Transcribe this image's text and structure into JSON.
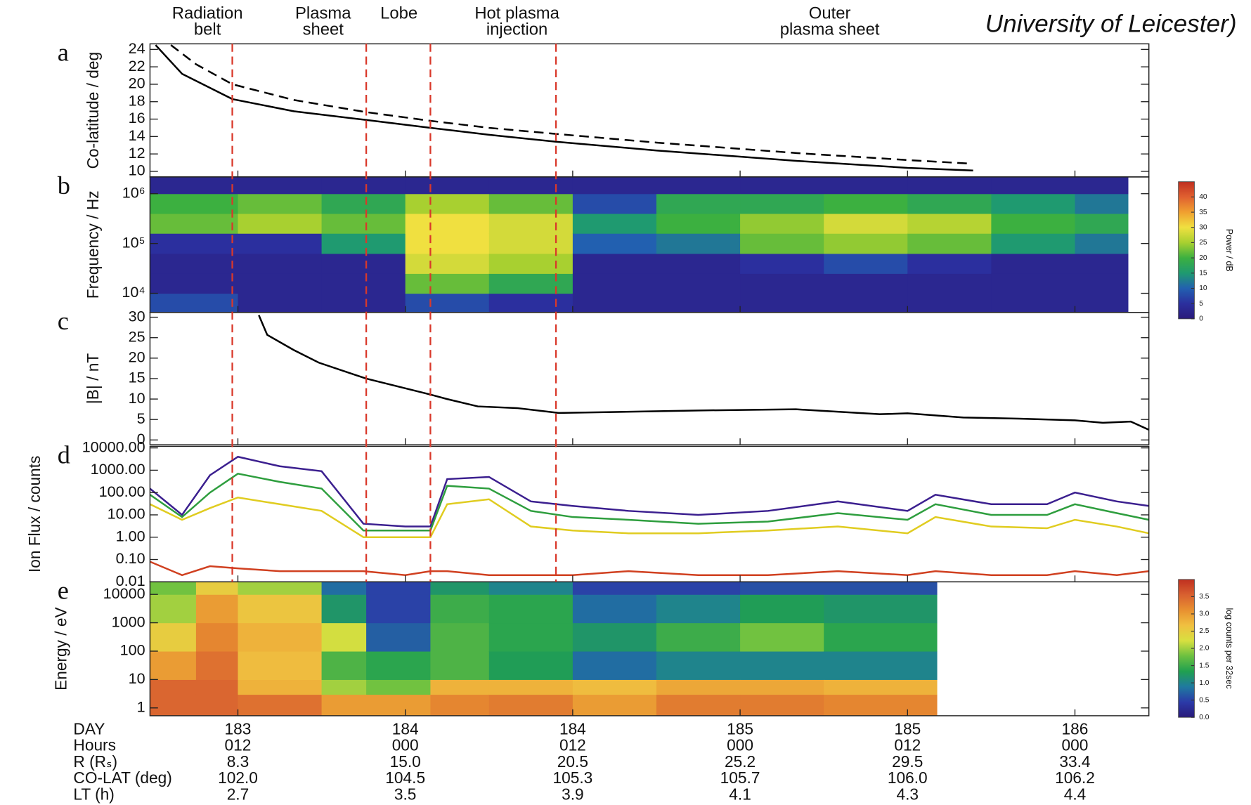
{
  "caption": "University of Leicester)",
  "regions": {
    "labels": [
      [
        "Radiation",
        "belt"
      ],
      [
        "Plasma",
        "sheet"
      ],
      [
        "Lobe"
      ],
      [
        "Hot plasma",
        "injection"
      ],
      [
        "Outer",
        "plasma sheet"
      ]
    ],
    "boundaries": [
      11.6,
      21.2,
      25.8,
      34.8
    ],
    "boundary_color": "#d9382a"
  },
  "x_axis": {
    "xlim": [
      5.7,
      77.3
    ],
    "xticks": [
      12,
      24,
      36,
      48,
      60,
      72
    ]
  },
  "ephemeris": [
    {
      "name": "DAY",
      "labels": [
        "183",
        "184",
        "184",
        "185",
        "185",
        "186"
      ]
    },
    {
      "name": "Hours",
      "labels": [
        "012",
        "000",
        "012",
        "000",
        "012",
        "000"
      ]
    },
    {
      "name": "R (Rₛ)",
      "labels": [
        "8.3",
        "15.0",
        "20.5",
        "25.2",
        "29.5",
        "33.4"
      ]
    },
    {
      "name": "CO-LAT (deg)",
      "labels": [
        "102.0",
        "104.5",
        "105.3",
        "105.7",
        "106.0",
        "106.2"
      ]
    },
    {
      "name": "LT (h)",
      "labels": [
        "2.7",
        "3.5",
        "3.9",
        "4.1",
        "4.3",
        "4.4"
      ]
    }
  ],
  "chart_data": [
    {
      "type": "line",
      "panel": "a",
      "ylabel": "Co-latitude / deg",
      "ylim": [
        9.36,
        24.64
      ],
      "yticks": [
        10,
        12,
        14,
        16,
        18,
        20,
        22,
        24
      ],
      "series": [
        {
          "color": "#000000",
          "dashed": false,
          "x": [
            6.1,
            8,
            11.6,
            16,
            21.2,
            25.8,
            30,
            34.8,
            42,
            52.1,
            60,
            64.7
          ],
          "values": [
            24.5,
            21.2,
            18.3,
            16.9,
            15.9,
            15.0,
            14.2,
            13.4,
            12.4,
            11.2,
            10.4,
            10.1
          ]
        },
        {
          "color": "#000000",
          "dashed": true,
          "x": [
            7.2,
            9,
            11.6,
            16,
            21.2,
            25.8,
            30,
            34.8,
            42,
            52.1,
            60,
            64.4
          ],
          "values": [
            24.5,
            22.3,
            20.0,
            18.2,
            16.8,
            15.8,
            15.0,
            14.3,
            13.3,
            12.1,
            11.3,
            10.9
          ]
        }
      ]
    },
    {
      "type": "heatmap",
      "panel": "b",
      "ylabel": "Frequency / Hz",
      "log_y": true,
      "ylim": [
        4130,
        2168000
      ],
      "yticks": [
        {
          "value": 10000,
          "label": "10⁴"
        },
        {
          "value": 100000,
          "label": "10⁵"
        },
        {
          "value": 1000000,
          "label": "10⁶"
        }
      ],
      "x_edges": [
        5.7,
        12,
        18,
        24,
        30,
        36,
        42,
        48,
        54,
        60,
        66,
        72,
        75.8
      ],
      "y_edges": [
        4130,
        10000,
        25000,
        63000,
        160000,
        400000,
        1000000,
        2168000
      ],
      "z": [
        [
          8,
          3,
          3,
          5,
          22,
          20,
          3
        ],
        [
          3,
          3,
          3,
          5,
          25,
          22,
          3
        ],
        [
          3,
          3,
          3,
          15,
          22,
          18,
          3
        ],
        [
          8,
          22,
          28,
          30,
          30,
          25,
          3
        ],
        [
          5,
          18,
          25,
          28,
          28,
          22,
          3
        ],
        [
          3,
          3,
          3,
          10,
          15,
          8,
          3
        ],
        [
          3,
          3,
          3,
          12,
          20,
          18,
          3
        ],
        [
          3,
          3,
          5,
          22,
          24,
          18,
          3
        ],
        [
          3,
          3,
          8,
          24,
          28,
          20,
          3
        ],
        [
          3,
          3,
          5,
          22,
          26,
          18,
          3
        ],
        [
          3,
          3,
          3,
          15,
          20,
          15,
          3
        ],
        [
          3,
          3,
          3,
          12,
          18,
          12,
          3
        ]
      ],
      "zlim": [
        0,
        45
      ],
      "zticks": [
        0,
        5,
        10,
        15,
        20,
        25,
        30,
        35,
        40
      ],
      "zlabel": "Power / dB",
      "colormap": [
        "#2a1a7a",
        "#2b2f9e",
        "#2260b0",
        "#1f9a70",
        "#3cb040",
        "#a8d030",
        "#f0e040",
        "#f0a030",
        "#e06030",
        "#c03020"
      ]
    },
    {
      "type": "line",
      "panel": "c",
      "ylabel": "|B| / nT",
      "ylim": [
        -1.17,
        31.17
      ],
      "yticks": [
        0,
        5,
        10,
        15,
        20,
        25,
        30
      ],
      "series": [
        {
          "color": "#000000",
          "dashed": false,
          "x": [
            13.5,
            14.1,
            16,
            17.8,
            21.2,
            25.8,
            27,
            29.2,
            32,
            35,
            38.4,
            45,
            52,
            58,
            60,
            64,
            68,
            72,
            74,
            76,
            77.3
          ],
          "values": [
            30.5,
            25.7,
            22,
            18.9,
            15.0,
            11.1,
            10,
            8.2,
            7.8,
            6.6,
            6.8,
            7.2,
            7.5,
            6.3,
            6.5,
            5.5,
            5.2,
            4.8,
            4.2,
            4.5,
            2.5
          ]
        }
      ]
    },
    {
      "type": "line",
      "panel": "d",
      "ylabel": "Ion Flux / counts",
      "log_y": true,
      "ylim": [
        0.01,
        11750
      ],
      "yticks": [
        0.01,
        {
          "value": 0.1,
          "label": "0.10"
        },
        {
          "value": 1,
          "label": "1.00"
        },
        {
          "value": 10,
          "label": "10.00"
        },
        {
          "value": 100,
          "label": "100.00"
        },
        {
          "value": 1000,
          "label": "1000.00"
        },
        {
          "value": 10000,
          "label": "10000.00"
        }
      ],
      "x": [
        5.7,
        8,
        10,
        12,
        15,
        18,
        21,
        24,
        25.8,
        27,
        30,
        33,
        36,
        40,
        45,
        50,
        55,
        60,
        62,
        66,
        70,
        72,
        75,
        77.3
      ],
      "series": [
        {
          "color": "#3b1f8f",
          "values": [
            150,
            10,
            600,
            4000,
            1500,
            900,
            4,
            3,
            3,
            400,
            500,
            40,
            25,
            15,
            10,
            15,
            40,
            15,
            80,
            30,
            30,
            100,
            40,
            25
          ]
        },
        {
          "color": "#2e9e3e",
          "values": [
            80,
            8,
            100,
            700,
            300,
            150,
            2,
            2,
            2,
            200,
            150,
            15,
            8,
            6,
            4,
            5,
            12,
            6,
            30,
            10,
            10,
            30,
            12,
            6
          ]
        },
        {
          "color": "#e0cc20",
          "values": [
            30,
            6,
            20,
            60,
            30,
            15,
            1,
            1,
            1,
            30,
            50,
            3,
            2,
            1.5,
            1.5,
            2,
            3,
            1.5,
            8,
            3,
            2.5,
            6,
            3,
            1.5
          ]
        },
        {
          "color": "#d04020",
          "values": [
            0.08,
            0.02,
            0.05,
            0.04,
            0.03,
            0.03,
            0.03,
            0.02,
            0.03,
            0.03,
            0.02,
            0.02,
            0.02,
            0.03,
            0.02,
            0.02,
            0.03,
            0.02,
            0.03,
            0.02,
            0.02,
            0.03,
            0.02,
            0.03
          ]
        }
      ]
    },
    {
      "type": "heatmap",
      "panel": "e",
      "ylabel": "Energy / eV",
      "log_y": true,
      "ylim": [
        0.53,
        27700
      ],
      "yticks": [
        1,
        10,
        100,
        1000,
        10000
      ],
      "x_edges": [
        5.7,
        9,
        12,
        18,
        21.2,
        25.8,
        30,
        36,
        42,
        48,
        54,
        62.1
      ],
      "y_edges": [
        0.53,
        3,
        10,
        100,
        1000,
        10000,
        27700
      ],
      "z": [
        [
          3.5,
          3.5,
          3.0,
          2.5,
          2.0,
          1.8
        ],
        [
          3.5,
          3.5,
          3.4,
          3.2,
          3.0,
          2.5
        ],
        [
          3.4,
          2.8,
          2.7,
          2.8,
          2.6,
          2.0
        ],
        [
          3.0,
          2.0,
          1.6,
          2.2,
          1.2,
          0.8
        ],
        [
          3.0,
          1.8,
          1.4,
          0.7,
          0.5,
          0.5
        ],
        [
          3.2,
          2.8,
          1.6,
          1.6,
          1.5,
          1.2
        ],
        [
          3.3,
          2.8,
          1.3,
          1.4,
          1.4,
          1.0
        ],
        [
          3.0,
          2.7,
          0.8,
          1.2,
          0.8,
          0.5
        ],
        [
          3.3,
          2.9,
          1.0,
          1.5,
          1.0,
          0.5
        ],
        [
          3.3,
          2.9,
          1.0,
          1.8,
          1.3,
          0.6
        ],
        [
          3.2,
          2.8,
          1.0,
          1.4,
          1.2,
          0.6
        ]
      ],
      "zlim": [
        0,
        4
      ],
      "zticks": [
        {
          "value": 0,
          "label": "0.0"
        },
        0.5,
        {
          "value": 1,
          "label": "1.0"
        },
        1.5,
        {
          "value": 2,
          "label": "2.0"
        },
        2.5,
        {
          "value": 3,
          "label": "3.0"
        },
        3.5
      ],
      "zlabel": "log counts per 32sec",
      "colormap": [
        "#2a1a7a",
        "#2b3aa8",
        "#1f7aa0",
        "#20a050",
        "#6cc040",
        "#d8e040",
        "#f0c040",
        "#e89030",
        "#d86030",
        "#c03020"
      ]
    }
  ]
}
